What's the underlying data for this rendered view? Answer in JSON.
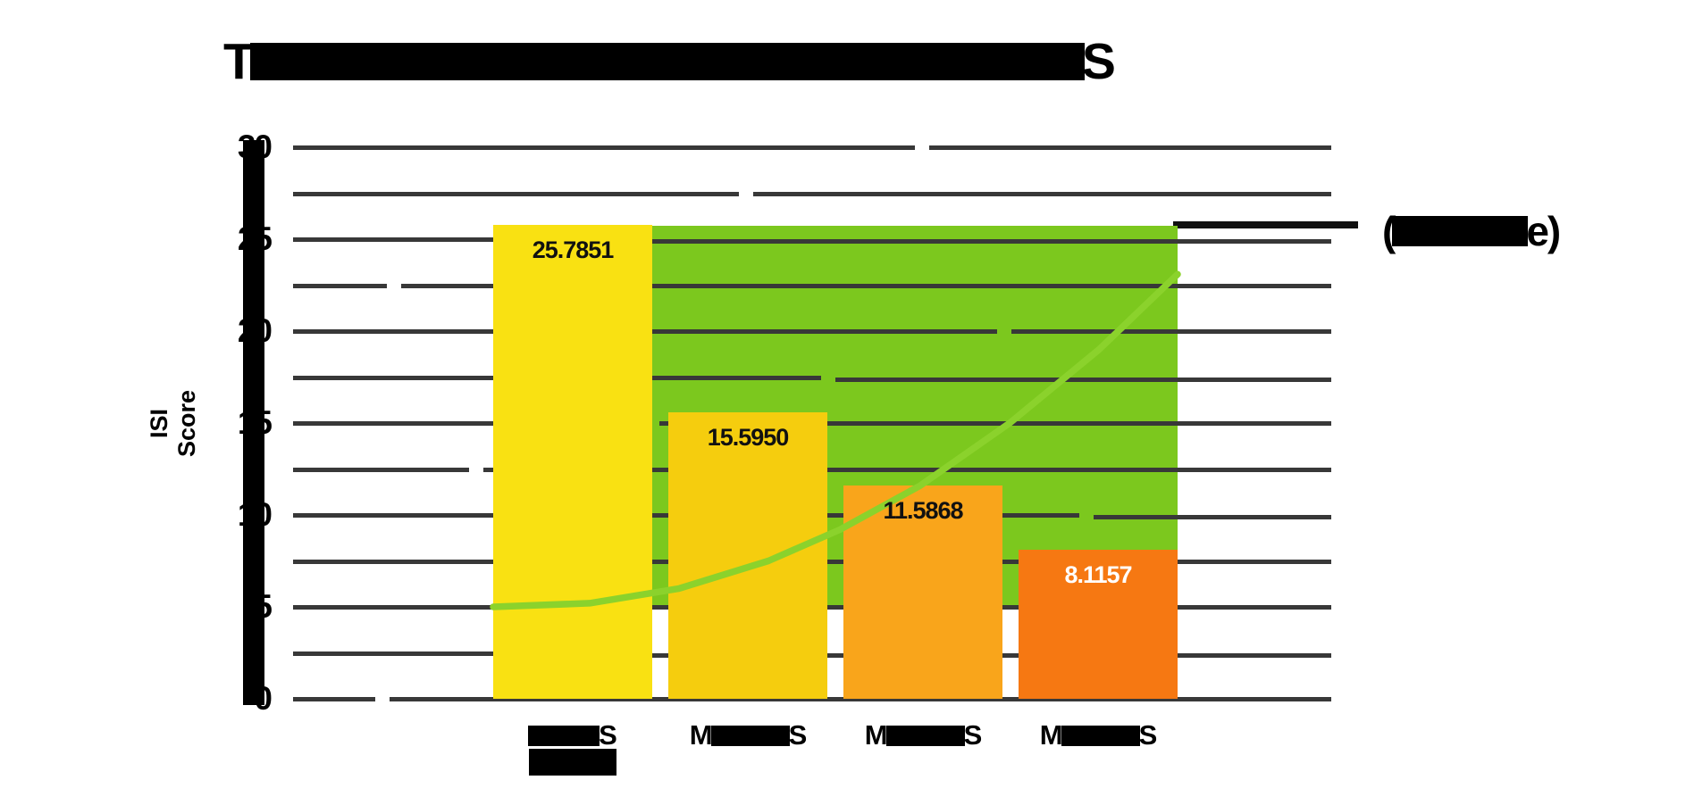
{
  "chart_data": {
    "type": "bar",
    "title": {
      "start_glyph": "T",
      "end_glyph": "S",
      "redacted_middle": true
    },
    "ylabel": "ISI Score",
    "ylim": [
      0,
      30
    ],
    "yticks": [
      30,
      25,
      20,
      15,
      10,
      5,
      0
    ],
    "minor_gridline_step": 2.5,
    "grid_on": true,
    "categories": [
      {
        "start_glyph": "",
        "end_glyph": "S",
        "second_line_redacted": true
      },
      {
        "start_glyph": "M",
        "end_glyph": "S",
        "second_line_redacted": false
      },
      {
        "start_glyph": "M",
        "end_glyph": "S",
        "second_line_redacted": false
      },
      {
        "start_glyph": "M",
        "end_glyph": "S",
        "second_line_redacted": false
      }
    ],
    "values": [
      25.7851,
      15.595,
      11.5868,
      8.1157
    ],
    "value_labels": [
      "25.7851",
      "15.5950",
      "11.5868",
      "8.1157"
    ],
    "bar_colors": [
      "#F9E112",
      "#F5CD0E",
      "#F9A51B",
      "#F67812"
    ],
    "value_label_colors": [
      "#111111",
      "#111111",
      "#111111",
      "#ffffff"
    ],
    "green_zone": {
      "from_value": 5.0,
      "to_value": 25.74,
      "color": "#7CC81E"
    },
    "trend_line": {
      "color": "#8BD22C",
      "approx_values": [
        5.0,
        5.2,
        6.0,
        7.5,
        9.2,
        11.6,
        15.0,
        19.0,
        23.1
      ]
    },
    "legend": {
      "start_glyph": "(",
      "end_glyph": "e)",
      "redacted_middle": true,
      "pointer_line_color": "#111111"
    },
    "colors": {
      "gridline": "#383838",
      "axis": "#000000",
      "background": "#ffffff"
    }
  }
}
